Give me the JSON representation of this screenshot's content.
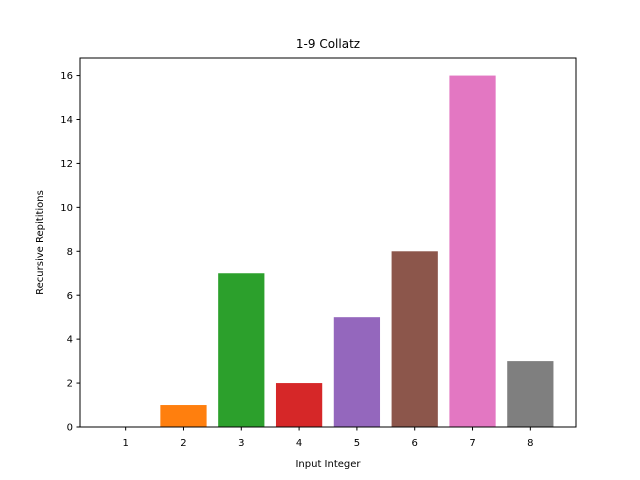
{
  "chart_data": {
    "type": "bar",
    "title": "1-9 Collatz",
    "xlabel": "Input Integer",
    "ylabel": "Recursive Repititions",
    "categories": [
      "1",
      "2",
      "3",
      "4",
      "5",
      "6",
      "7",
      "8"
    ],
    "values": [
      0,
      1,
      7,
      2,
      5,
      8,
      16,
      3
    ],
    "colors": [
      "#1f77b4",
      "#ff7f0e",
      "#2ca02c",
      "#d62728",
      "#9467bd",
      "#8c564b",
      "#e377c2",
      "#7f7f7f"
    ],
    "ylim": [
      0,
      16.8
    ],
    "yticks": [
      0,
      2,
      4,
      6,
      8,
      10,
      12,
      14,
      16
    ],
    "grid": false,
    "legend": "none"
  }
}
